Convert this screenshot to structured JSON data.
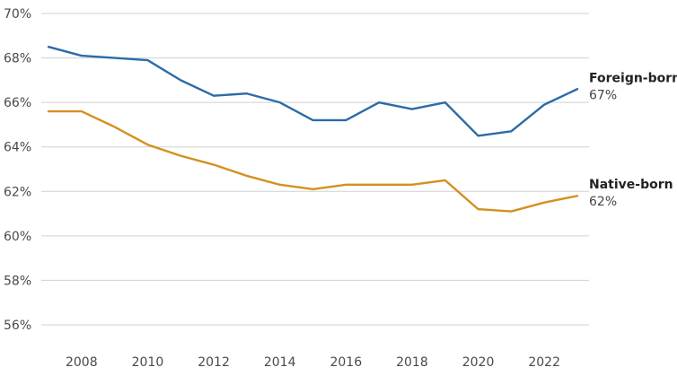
{
  "chart_data": {
    "type": "line",
    "title": "",
    "xlabel": "",
    "ylabel": "",
    "x": [
      2007,
      2008,
      2009,
      2010,
      2011,
      2012,
      2013,
      2014,
      2015,
      2016,
      2017,
      2018,
      2019,
      2020,
      2021,
      2022,
      2023
    ],
    "xticks": [
      2008,
      2010,
      2012,
      2014,
      2016,
      2018,
      2020,
      2022
    ],
    "xtick_labels": [
      "2008",
      "2010",
      "2012",
      "2014",
      "2016",
      "2018",
      "2020",
      "2022"
    ],
    "xlim": [
      2007,
      2023
    ],
    "ylim": [
      56,
      70
    ],
    "yticks": [
      56,
      58,
      60,
      62,
      64,
      66,
      68,
      70
    ],
    "ytick_labels": [
      "56%",
      "58%",
      "60%",
      "62%",
      "64%",
      "66%",
      "68%",
      "70%"
    ],
    "grid": "horizontal",
    "legend": "end-of-line labels",
    "series": [
      {
        "name": "Foreign-born",
        "end_label": "67%",
        "color": "#2c6ba8",
        "values": [
          68.5,
          68.1,
          68.0,
          67.9,
          67.0,
          66.3,
          66.4,
          66.0,
          65.2,
          65.2,
          66.0,
          65.7,
          66.0,
          64.5,
          64.7,
          65.9,
          66.6
        ]
      },
      {
        "name": "Native-born",
        "end_label": "62%",
        "color": "#d4901f",
        "values": [
          65.6,
          65.6,
          64.9,
          64.1,
          63.6,
          63.2,
          62.7,
          62.3,
          62.1,
          62.3,
          62.3,
          62.3,
          62.5,
          61.2,
          61.1,
          61.5,
          61.8
        ]
      }
    ],
    "colors": {
      "grid": "#d0d0d0",
      "tick_text": "#4a4a4a",
      "label_text": "#222222"
    }
  }
}
